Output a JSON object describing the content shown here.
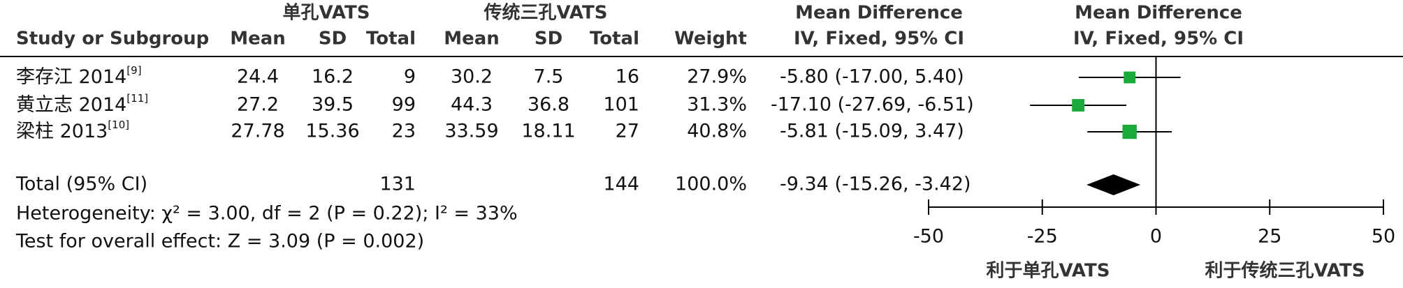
{
  "chart_data": {
    "type": "forest",
    "group_headers": [
      "单孔VATS",
      "传统三孔VATS"
    ],
    "columns": [
      "Study or Subgroup",
      "Mean",
      "SD",
      "Total",
      "Mean",
      "SD",
      "Total",
      "Weight"
    ],
    "effect_header": [
      "Mean Difference",
      "IV, Fixed, 95% CI"
    ],
    "plot_header": [
      "Mean Difference",
      "IV, Fixed, 95% CI"
    ],
    "studies": [
      {
        "name": "李存江 2014",
        "ref": "[9]",
        "exp": [
          24.4,
          16.2,
          9
        ],
        "ctrl": [
          30.2,
          7.5,
          16
        ],
        "weight": 27.9,
        "weight_label": "27.9%",
        "md": -5.8,
        "ci": [
          -17,
          5.4
        ],
        "ci_label": "-5.80 (-17.00, 5.40)"
      },
      {
        "name": "黄立志 2014",
        "ref": "[11]",
        "exp": [
          27.2,
          39.5,
          99
        ],
        "ctrl": [
          44.3,
          36.8,
          101
        ],
        "weight": 31.3,
        "weight_label": "31.3%",
        "md": -17.1,
        "ci": [
          -27.69,
          -6.51
        ],
        "ci_label": "-17.10 (-27.69, -6.51)"
      },
      {
        "name": "梁柱 2013",
        "ref": "[10]",
        "exp": [
          27.78,
          15.36,
          23
        ],
        "ctrl": [
          33.59,
          18.11,
          27
        ],
        "weight": 40.8,
        "weight_label": "40.8%",
        "md": -5.81,
        "ci": [
          -15.09,
          3.47
        ],
        "ci_label": "-5.81 (-15.09, 3.47)"
      }
    ],
    "total": {
      "name": "Total (95% CI)",
      "exp_total": 131,
      "ctrl_total": 144,
      "weight": 100,
      "weight_label": "100.0%",
      "md": -9.34,
      "ci": [
        -15.26,
        -3.42
      ],
      "ci_label": "-9.34 (-15.26, -3.42)"
    },
    "heterogeneity": "Heterogeneity: χ² = 3.00, df = 2 (P = 0.22); I² = 33%",
    "overall_effect": "Test for overall effect: Z = 3.09 (P = 0.002)",
    "xlim": [
      -50,
      50
    ],
    "xticks": [
      -50,
      -25,
      0,
      25,
      50
    ],
    "favors": [
      "利于单孔VATS",
      "利于传统三孔VATS"
    ],
    "color": "#1aaa3c"
  }
}
